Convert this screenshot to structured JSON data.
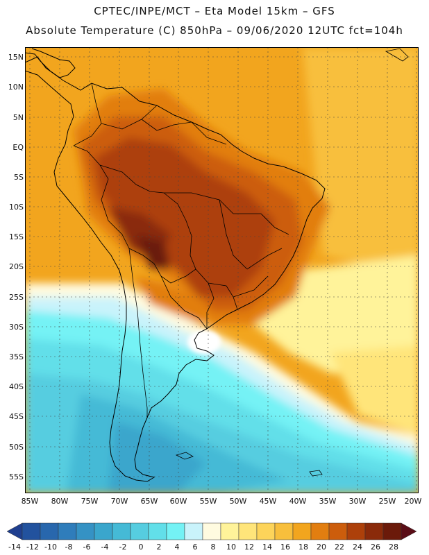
{
  "header": {
    "line1": "CPTEC/INPE/MCT –  Eta Model 15km – GFS",
    "line2": "Absolute Temperature (C) 850hPa – 09/06/2020 12UTC fct=104h"
  },
  "map": {
    "lat_labels": [
      "15N",
      "10N",
      "5N",
      "EQ",
      "5S",
      "10S",
      "15S",
      "20S",
      "25S",
      "30S",
      "35S",
      "40S",
      "45S",
      "50S",
      "55S"
    ],
    "lon_labels": [
      "85W",
      "80W",
      "75W",
      "70W",
      "65W",
      "60W",
      "55W",
      "50W",
      "45W",
      "40W",
      "35W",
      "30W",
      "25W",
      "20W"
    ]
  },
  "colorbar": {
    "labels": [
      "-14",
      "-12",
      "-10",
      "-8",
      "-6",
      "-4",
      "-2",
      "0",
      "2",
      "4",
      "6",
      "8",
      "10",
      "12",
      "14",
      "16",
      "18",
      "20",
      "22",
      "24",
      "26",
      "28"
    ],
    "colors": [
      "#1f3f8f",
      "#22529e",
      "#2867ad",
      "#2f7dbb",
      "#3592c4",
      "#3aa6cc",
      "#45bad6",
      "#56cde0",
      "#62dfe9",
      "#74f2f5",
      "#c9f3fb",
      "#fffbe0",
      "#fff39a",
      "#ffe57a",
      "#fdd45a",
      "#f8bf3c",
      "#f2a51e",
      "#e27e10",
      "#cc5d0c",
      "#ad400a",
      "#8a2a0a",
      "#6b1a0a",
      "#5a0d16"
    ]
  }
}
